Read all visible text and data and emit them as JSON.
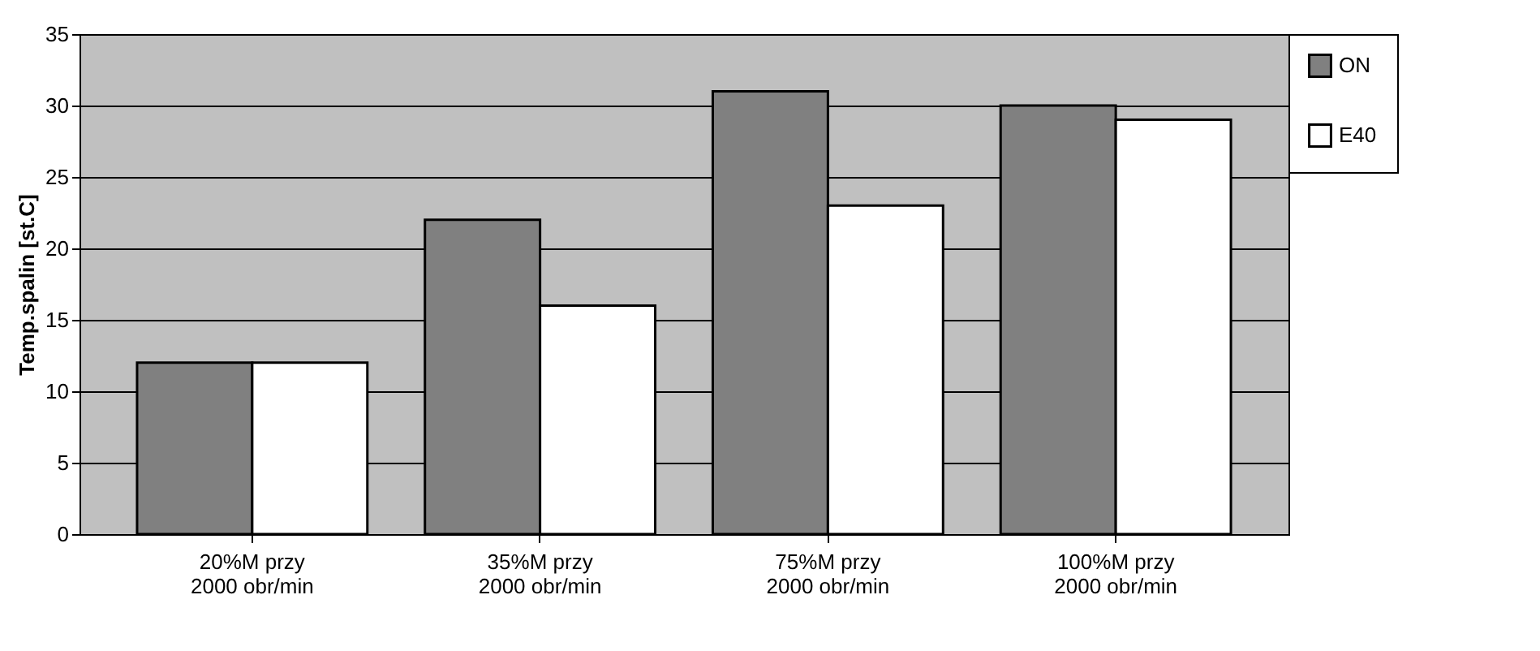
{
  "chart_data": {
    "type": "bar",
    "ylabel": "Temp.spalin [st.C]",
    "categories": [
      "20%M przy 2000 obr/min",
      "35%M przy 2000 obr/min",
      "75%M przy 2000 obr/min",
      "100%M przy 2000 obr/min"
    ],
    "series": [
      {
        "name": "ON",
        "color": "#808080",
        "values": [
          12,
          22,
          31,
          30
        ]
      },
      {
        "name": "E40",
        "color": "#ffffff",
        "values": [
          12,
          16,
          23,
          29
        ]
      }
    ],
    "ylim": [
      0,
      35
    ],
    "yticks": [
      0,
      5,
      10,
      15,
      20,
      25,
      30,
      35
    ],
    "grid": "y",
    "legend": "right"
  }
}
